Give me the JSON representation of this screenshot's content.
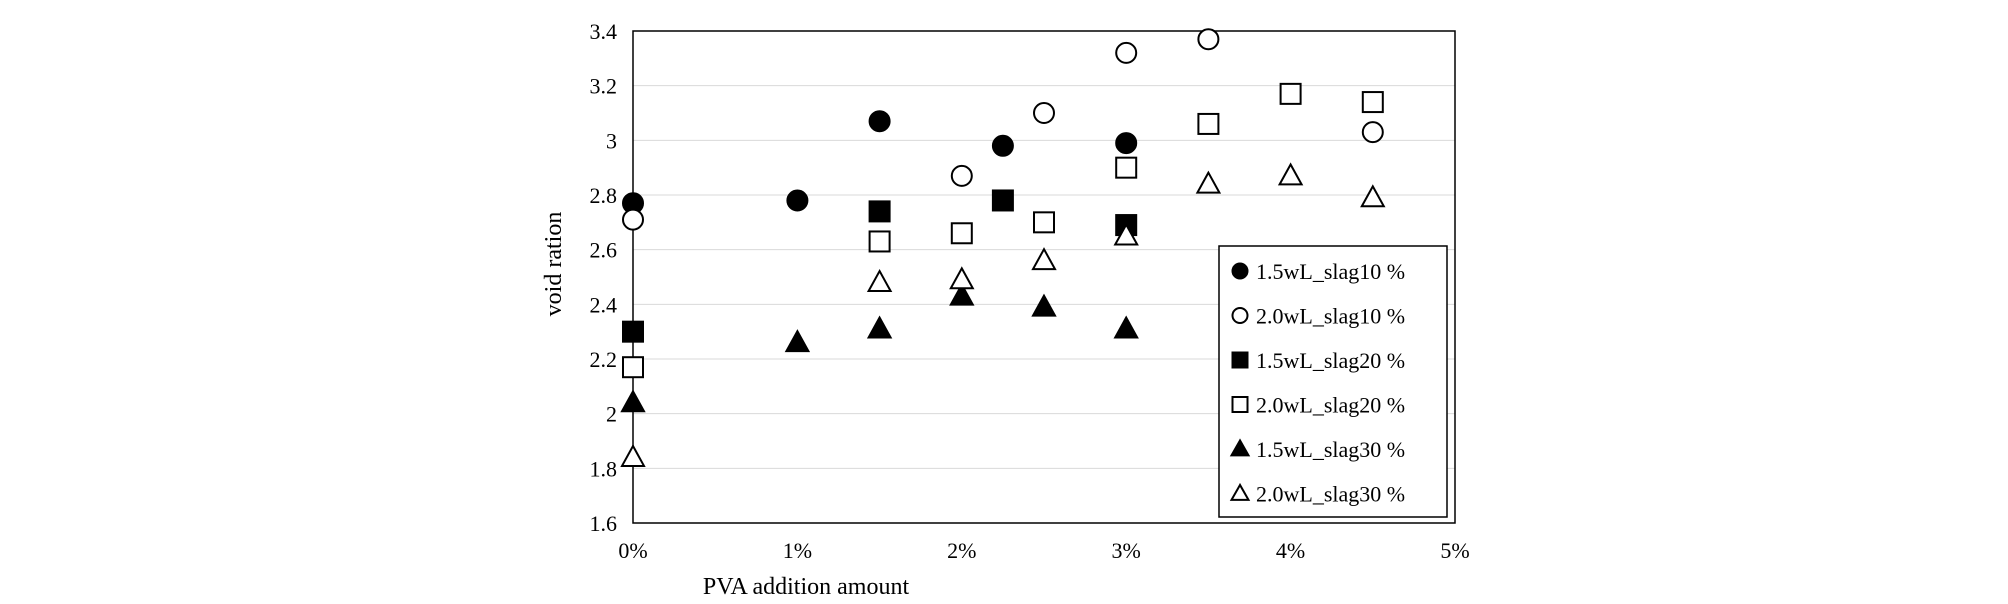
{
  "chart_data": {
    "type": "scatter",
    "xlabel": "PVA addition amount",
    "ylabel": "void ration",
    "xlim": [
      0,
      5
    ],
    "ylim": [
      1.6,
      3.4
    ],
    "xticks": [
      0,
      1,
      2,
      3,
      4,
      5
    ],
    "xtick_labels": [
      "0%",
      "1%",
      "2%",
      "3%",
      "4%",
      "5%"
    ],
    "yticks": [
      1.6,
      1.8,
      2,
      2.2,
      2.4,
      2.6,
      2.8,
      3,
      3.2,
      3.4
    ],
    "ytick_labels": [
      "1.6",
      "1.8",
      "2",
      "2.2",
      "2.4",
      "2.6",
      "2.8",
      "3",
      "3.2",
      "3.4"
    ],
    "grid": "horizontal",
    "legend_position": "bottom-right",
    "series": [
      {
        "name": "1.5wL_slag10 %",
        "marker": "circle",
        "filled": true,
        "points": [
          {
            "x": 0,
            "y": 2.77
          },
          {
            "x": 1,
            "y": 2.78
          },
          {
            "x": 1.5,
            "y": 3.07
          },
          {
            "x": 2.25,
            "y": 2.98
          },
          {
            "x": 3,
            "y": 2.99
          }
        ]
      },
      {
        "name": "2.0wL_slag10 %",
        "marker": "circle",
        "filled": false,
        "points": [
          {
            "x": 0,
            "y": 2.71
          },
          {
            "x": 2,
            "y": 2.87
          },
          {
            "x": 2.5,
            "y": 3.1
          },
          {
            "x": 3,
            "y": 3.32
          },
          {
            "x": 3.5,
            "y": 3.37
          },
          {
            "x": 4.5,
            "y": 3.03
          }
        ]
      },
      {
        "name": "1.5wL_slag20 %",
        "marker": "square",
        "filled": true,
        "points": [
          {
            "x": 0,
            "y": 2.3
          },
          {
            "x": 1.5,
            "y": 2.74
          },
          {
            "x": 2.25,
            "y": 2.78
          },
          {
            "x": 3,
            "y": 2.69
          }
        ]
      },
      {
        "name": "2.0wL_slag20 %",
        "marker": "square",
        "filled": false,
        "points": [
          {
            "x": 0,
            "y": 2.17
          },
          {
            "x": 1.5,
            "y": 2.63
          },
          {
            "x": 2,
            "y": 2.66
          },
          {
            "x": 2.5,
            "y": 2.7
          },
          {
            "x": 3,
            "y": 2.9
          },
          {
            "x": 3.5,
            "y": 3.06
          },
          {
            "x": 4,
            "y": 3.17
          },
          {
            "x": 4.5,
            "y": 3.14
          }
        ]
      },
      {
        "name": "1.5wL_slag30 %",
        "marker": "triangle",
        "filled": true,
        "points": [
          {
            "x": 0,
            "y": 2.04
          },
          {
            "x": 1,
            "y": 2.26
          },
          {
            "x": 1.5,
            "y": 2.31
          },
          {
            "x": 2,
            "y": 2.43
          },
          {
            "x": 2.5,
            "y": 2.39
          },
          {
            "x": 3,
            "y": 2.31
          }
        ]
      },
      {
        "name": "2.0wL_slag30 %",
        "marker": "triangle",
        "filled": false,
        "points": [
          {
            "x": 0,
            "y": 1.84
          },
          {
            "x": 1.5,
            "y": 2.48
          },
          {
            "x": 2,
            "y": 2.49
          },
          {
            "x": 2.5,
            "y": 2.56
          },
          {
            "x": 3,
            "y": 2.65
          },
          {
            "x": 3.5,
            "y": 2.84
          },
          {
            "x": 4,
            "y": 2.87
          },
          {
            "x": 4.5,
            "y": 2.79
          }
        ]
      }
    ]
  },
  "colors": {
    "axis": "#000000",
    "grid": "#d9d9d9",
    "marker": "#000000",
    "marker_hollow_fill": "#ffffff"
  }
}
